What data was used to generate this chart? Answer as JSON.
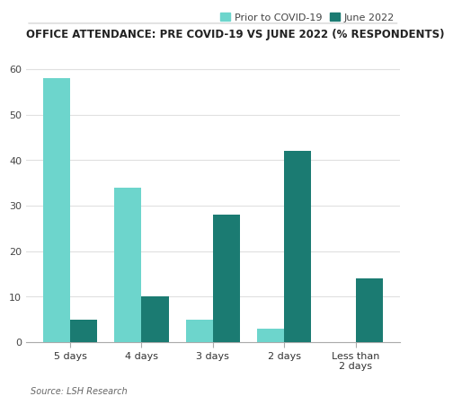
{
  "title": "OFFICE ATTENDANCE: PRE COVID-19 VS JUNE 2022 (% RESPONDENTS)",
  "categories": [
    "5 days",
    "4 days",
    "3 days",
    "2 days",
    "Less than\n2 days"
  ],
  "prior_covid": [
    58,
    34,
    5,
    3,
    0
  ],
  "june_2022": [
    5,
    10,
    28,
    42,
    14
  ],
  "color_prior": "#6DD5CC",
  "color_june": "#1B7B72",
  "legend_labels": [
    "Prior to COVID-19",
    "June 2022"
  ],
  "ylim": [
    0,
    62
  ],
  "yticks": [
    0,
    10,
    20,
    30,
    40,
    50,
    60
  ],
  "source_text": "Source: LSH Research",
  "title_fontsize": 8.5,
  "tick_fontsize": 8,
  "legend_fontsize": 8,
  "source_fontsize": 7,
  "bar_width": 0.38,
  "background_color": "#FFFFFF",
  "grid_color": "#E0E0E0"
}
